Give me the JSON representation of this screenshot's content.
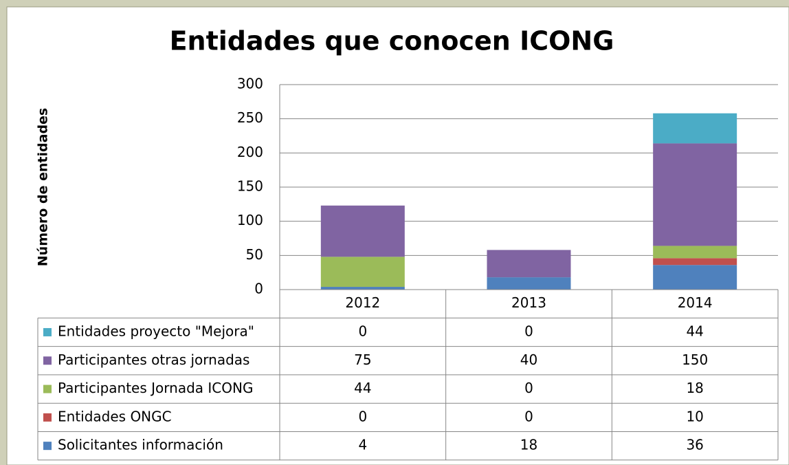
{
  "chart_data": {
    "type": "bar",
    "stacked": true,
    "title": "Entidades que conocen ICONG",
    "y_label": "Número de entidades",
    "categories": [
      "2012",
      "2013",
      "2014"
    ],
    "series": [
      {
        "name": "Solicitantes información",
        "color": "#4f81bd",
        "values": [
          4,
          18,
          36
        ]
      },
      {
        "name": "Entidades ONGC",
        "color": "#c0504d",
        "values": [
          0,
          0,
          10
        ]
      },
      {
        "name": "Participantes Jornada ICONG",
        "color": "#9bbb59",
        "values": [
          44,
          0,
          18
        ]
      },
      {
        "name": "Participantes otras jornadas",
        "color": "#8064a2",
        "values": [
          75,
          40,
          150
        ]
      },
      {
        "name": "Entidades proyecto \"Mejora\"",
        "color": "#4bacc6",
        "values": [
          0,
          0,
          44
        ]
      }
    ],
    "ylim": [
      0,
      300
    ],
    "yticks": [
      0,
      50,
      100,
      150,
      200,
      250,
      300
    ],
    "grid": true
  }
}
